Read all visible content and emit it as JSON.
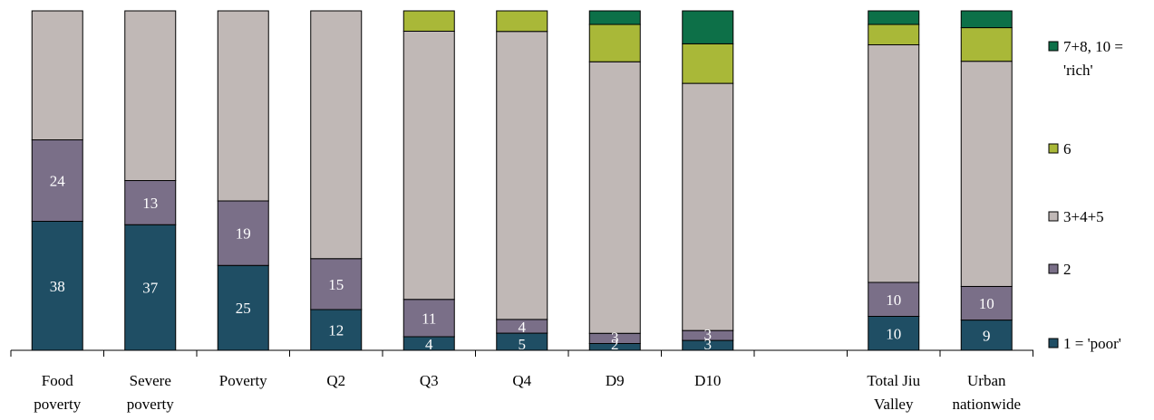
{
  "chart_data": {
    "type": "bar",
    "stacked": true,
    "percent_stacked": true,
    "categories": [
      [
        "Food",
        "poverty"
      ],
      [
        "Severe",
        "poverty"
      ],
      [
        "Poverty"
      ],
      [
        "Q2"
      ],
      [
        "Q3"
      ],
      [
        "Q4"
      ],
      [
        "D9"
      ],
      [
        "D10"
      ],
      [
        ""
      ],
      [
        "Total Jiu",
        "Valley"
      ],
      [
        "Urban",
        "nationwide"
      ]
    ],
    "series": [
      {
        "name": "1 = 'poor'",
        "color": "#1f4e64",
        "label_color": "#ffffff",
        "values": [
          38,
          37,
          25,
          12,
          4,
          5,
          2,
          3,
          null,
          10,
          9
        ],
        "labels": [
          "38",
          "37",
          "25",
          "12",
          "4",
          "5",
          "2",
          "3",
          "",
          "10",
          "9"
        ]
      },
      {
        "name": "2",
        "color": "#7a6f88",
        "label_color": "#ffffff",
        "values": [
          24,
          13,
          19,
          15,
          11,
          4,
          3,
          3,
          null,
          10,
          10
        ],
        "labels": [
          "24",
          "13",
          "19",
          "15",
          "11",
          "4",
          "3",
          "3",
          "",
          "10",
          "10"
        ]
      },
      {
        "name": "3+4+5",
        "color": "#c0b8b6",
        "label_color": "#ffffff",
        "values": [
          38,
          50,
          56,
          73,
          79,
          84,
          80,
          75,
          null,
          70,
          67
        ],
        "labels": [
          "",
          "",
          "",
          "",
          "",
          "",
          "",
          "",
          "",
          "",
          ""
        ]
      },
      {
        "name": "6",
        "color": "#a9b838",
        "label_color": "#ffffff",
        "values": [
          0,
          0,
          0,
          0,
          6,
          6,
          11,
          12,
          null,
          6,
          10
        ],
        "labels": [
          "",
          "",
          "",
          "",
          "",
          "",
          "",
          "",
          "",
          "",
          ""
        ]
      },
      {
        "name": "7+8, 10 = 'rich'",
        "color": "#0d7048",
        "label_color": "#ffffff",
        "values": [
          0,
          0,
          0,
          0,
          0,
          0,
          4,
          10,
          null,
          4,
          5
        ],
        "labels": [
          "",
          "",
          "",
          "",
          "",
          "",
          "",
          "",
          "",
          "",
          ""
        ]
      }
    ],
    "legend": {
      "position": "right",
      "order": [
        4,
        3,
        2,
        1,
        0
      ],
      "entries": [
        [
          "7+8, 10 =",
          "'rich'"
        ],
        [
          "6"
        ],
        [
          "3+4+5"
        ],
        [
          "2"
        ],
        [
          "1 = 'poor'"
        ]
      ]
    },
    "ylim": [
      0,
      100
    ],
    "grid": false,
    "title": "",
    "xlabel": "",
    "ylabel": ""
  }
}
